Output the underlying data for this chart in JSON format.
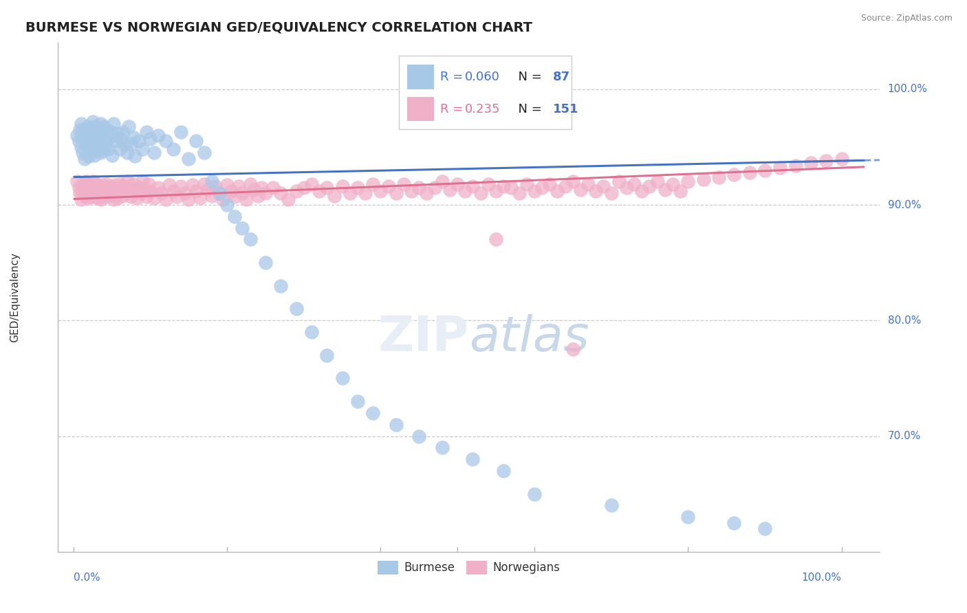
{
  "title": "BURMESE VS NORWEGIAN GED/EQUIVALENCY CORRELATION CHART",
  "ylabel": "GED/Equivalency",
  "source": "Source: ZipAtlas.com",
  "blue_label": "Burmese",
  "pink_label": "Norwegians",
  "blue_R": 0.06,
  "blue_N": 87,
  "pink_R": 0.235,
  "pink_N": 151,
  "blue_color": "#a8c8e8",
  "pink_color": "#f0b0c8",
  "blue_line_color": "#4472c4",
  "pink_line_color": "#e07090",
  "ytick_color": "#4472c4",
  "xtick_color": "#4472c4",
  "title_color": "#222222",
  "source_color": "#888888",
  "grid_color": "#cccccc",
  "legend_text_dark": "#222222",
  "ylim_low": 0.6,
  "ylim_high": 1.04,
  "xlim_low": -0.02,
  "xlim_high": 1.05,
  "blue_x": [
    0.005,
    0.007,
    0.008,
    0.01,
    0.01,
    0.012,
    0.013,
    0.015,
    0.015,
    0.015,
    0.017,
    0.018,
    0.018,
    0.02,
    0.02,
    0.021,
    0.022,
    0.023,
    0.024,
    0.025,
    0.025,
    0.027,
    0.028,
    0.03,
    0.03,
    0.032,
    0.033,
    0.035,
    0.035,
    0.037,
    0.038,
    0.04,
    0.04,
    0.042,
    0.043,
    0.045,
    0.047,
    0.048,
    0.05,
    0.052,
    0.055,
    0.057,
    0.06,
    0.062,
    0.065,
    0.067,
    0.07,
    0.072,
    0.075,
    0.078,
    0.08,
    0.085,
    0.09,
    0.095,
    0.1,
    0.105,
    0.11,
    0.12,
    0.13,
    0.14,
    0.15,
    0.16,
    0.17,
    0.18,
    0.19,
    0.2,
    0.21,
    0.22,
    0.23,
    0.25,
    0.27,
    0.29,
    0.31,
    0.33,
    0.35,
    0.37,
    0.39,
    0.42,
    0.45,
    0.48,
    0.52,
    0.56,
    0.6,
    0.7,
    0.8,
    0.86,
    0.9
  ],
  "blue_y": [
    0.96,
    0.955,
    0.965,
    0.95,
    0.97,
    0.945,
    0.96,
    0.955,
    0.965,
    0.94,
    0.958,
    0.952,
    0.968,
    0.942,
    0.963,
    0.957,
    0.947,
    0.962,
    0.953,
    0.958,
    0.972,
    0.943,
    0.968,
    0.955,
    0.948,
    0.963,
    0.958,
    0.945,
    0.97,
    0.952,
    0.947,
    0.96,
    0.968,
    0.953,
    0.965,
    0.948,
    0.958,
    0.963,
    0.943,
    0.97,
    0.955,
    0.962,
    0.948,
    0.957,
    0.963,
    0.952,
    0.945,
    0.968,
    0.953,
    0.958,
    0.942,
    0.955,
    0.948,
    0.963,
    0.957,
    0.945,
    0.96,
    0.955,
    0.948,
    0.963,
    0.94,
    0.955,
    0.945,
    0.92,
    0.91,
    0.9,
    0.89,
    0.88,
    0.87,
    0.85,
    0.83,
    0.81,
    0.79,
    0.77,
    0.75,
    0.73,
    0.72,
    0.71,
    0.7,
    0.69,
    0.68,
    0.67,
    0.65,
    0.64,
    0.63,
    0.625,
    0.62
  ],
  "pink_x": [
    0.005,
    0.007,
    0.008,
    0.01,
    0.012,
    0.013,
    0.015,
    0.016,
    0.018,
    0.019,
    0.02,
    0.021,
    0.022,
    0.024,
    0.025,
    0.026,
    0.028,
    0.029,
    0.03,
    0.031,
    0.032,
    0.034,
    0.035,
    0.036,
    0.038,
    0.04,
    0.041,
    0.043,
    0.044,
    0.046,
    0.048,
    0.05,
    0.052,
    0.054,
    0.056,
    0.058,
    0.06,
    0.062,
    0.064,
    0.066,
    0.068,
    0.07,
    0.073,
    0.075,
    0.078,
    0.08,
    0.083,
    0.085,
    0.088,
    0.09,
    0.093,
    0.095,
    0.098,
    0.1,
    0.105,
    0.11,
    0.115,
    0.12,
    0.125,
    0.13,
    0.135,
    0.14,
    0.145,
    0.15,
    0.155,
    0.16,
    0.165,
    0.17,
    0.175,
    0.18,
    0.185,
    0.19,
    0.195,
    0.2,
    0.205,
    0.21,
    0.215,
    0.22,
    0.225,
    0.23,
    0.235,
    0.24,
    0.245,
    0.25,
    0.26,
    0.27,
    0.28,
    0.29,
    0.3,
    0.31,
    0.32,
    0.33,
    0.34,
    0.35,
    0.36,
    0.37,
    0.38,
    0.39,
    0.4,
    0.41,
    0.42,
    0.43,
    0.44,
    0.45,
    0.46,
    0.47,
    0.48,
    0.49,
    0.5,
    0.51,
    0.52,
    0.53,
    0.54,
    0.55,
    0.56,
    0.57,
    0.58,
    0.59,
    0.6,
    0.61,
    0.62,
    0.63,
    0.64,
    0.65,
    0.66,
    0.67,
    0.68,
    0.69,
    0.7,
    0.71,
    0.72,
    0.73,
    0.74,
    0.75,
    0.76,
    0.77,
    0.78,
    0.79,
    0.8,
    0.82,
    0.84,
    0.86,
    0.88,
    0.9,
    0.92,
    0.94,
    0.96,
    0.98,
    1.0,
    0.55,
    0.65
  ],
  "pink_y": [
    0.92,
    0.915,
    0.91,
    0.905,
    0.918,
    0.912,
    0.908,
    0.92,
    0.914,
    0.906,
    0.918,
    0.912,
    0.907,
    0.916,
    0.91,
    0.92,
    0.913,
    0.907,
    0.918,
    0.912,
    0.906,
    0.915,
    0.91,
    0.905,
    0.917,
    0.912,
    0.907,
    0.918,
    0.913,
    0.908,
    0.916,
    0.91,
    0.905,
    0.917,
    0.912,
    0.906,
    0.918,
    0.913,
    0.908,
    0.916,
    0.91,
    0.92,
    0.913,
    0.907,
    0.918,
    0.912,
    0.906,
    0.915,
    0.91,
    0.92,
    0.913,
    0.907,
    0.918,
    0.912,
    0.906,
    0.915,
    0.91,
    0.905,
    0.917,
    0.912,
    0.907,
    0.916,
    0.91,
    0.905,
    0.917,
    0.912,
    0.906,
    0.918,
    0.913,
    0.908,
    0.916,
    0.91,
    0.905,
    0.917,
    0.912,
    0.907,
    0.916,
    0.91,
    0.905,
    0.918,
    0.913,
    0.908,
    0.915,
    0.91,
    0.915,
    0.91,
    0.905,
    0.912,
    0.915,
    0.918,
    0.912,
    0.915,
    0.908,
    0.916,
    0.91,
    0.915,
    0.91,
    0.918,
    0.912,
    0.916,
    0.91,
    0.918,
    0.912,
    0.915,
    0.91,
    0.915,
    0.92,
    0.913,
    0.918,
    0.912,
    0.916,
    0.91,
    0.918,
    0.912,
    0.916,
    0.915,
    0.91,
    0.918,
    0.912,
    0.915,
    0.918,
    0.912,
    0.916,
    0.92,
    0.913,
    0.918,
    0.912,
    0.916,
    0.91,
    0.92,
    0.915,
    0.918,
    0.912,
    0.916,
    0.92,
    0.913,
    0.918,
    0.912,
    0.92,
    0.922,
    0.924,
    0.926,
    0.928,
    0.93,
    0.932,
    0.934,
    0.936,
    0.938,
    0.94,
    0.87,
    0.775
  ]
}
